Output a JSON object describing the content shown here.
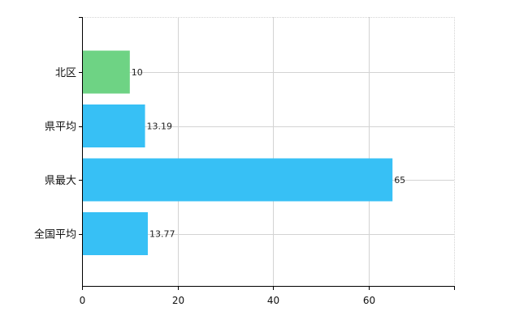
{
  "chart_data": {
    "type": "bar",
    "orientation": "horizontal",
    "categories": [
      "北区",
      "県平均",
      "県最大",
      "全国平均"
    ],
    "values": [
      10,
      13.19,
      65,
      13.77
    ],
    "value_labels": [
      "10",
      "13.19",
      "65",
      "13.77"
    ],
    "bar_colors": [
      "#6ed384",
      "#37c0f5",
      "#37c0f5",
      "#37c0f5"
    ],
    "xlim": [
      0,
      78
    ],
    "xticks": [
      0,
      20,
      40,
      60
    ],
    "grid": true,
    "legend": "none",
    "title": "",
    "xlabel": "",
    "ylabel": ""
  },
  "colors": {
    "grid": "#d3d3d3",
    "axis": "#000000",
    "highlight_bar": "#6ed384",
    "bar": "#37c0f5"
  }
}
